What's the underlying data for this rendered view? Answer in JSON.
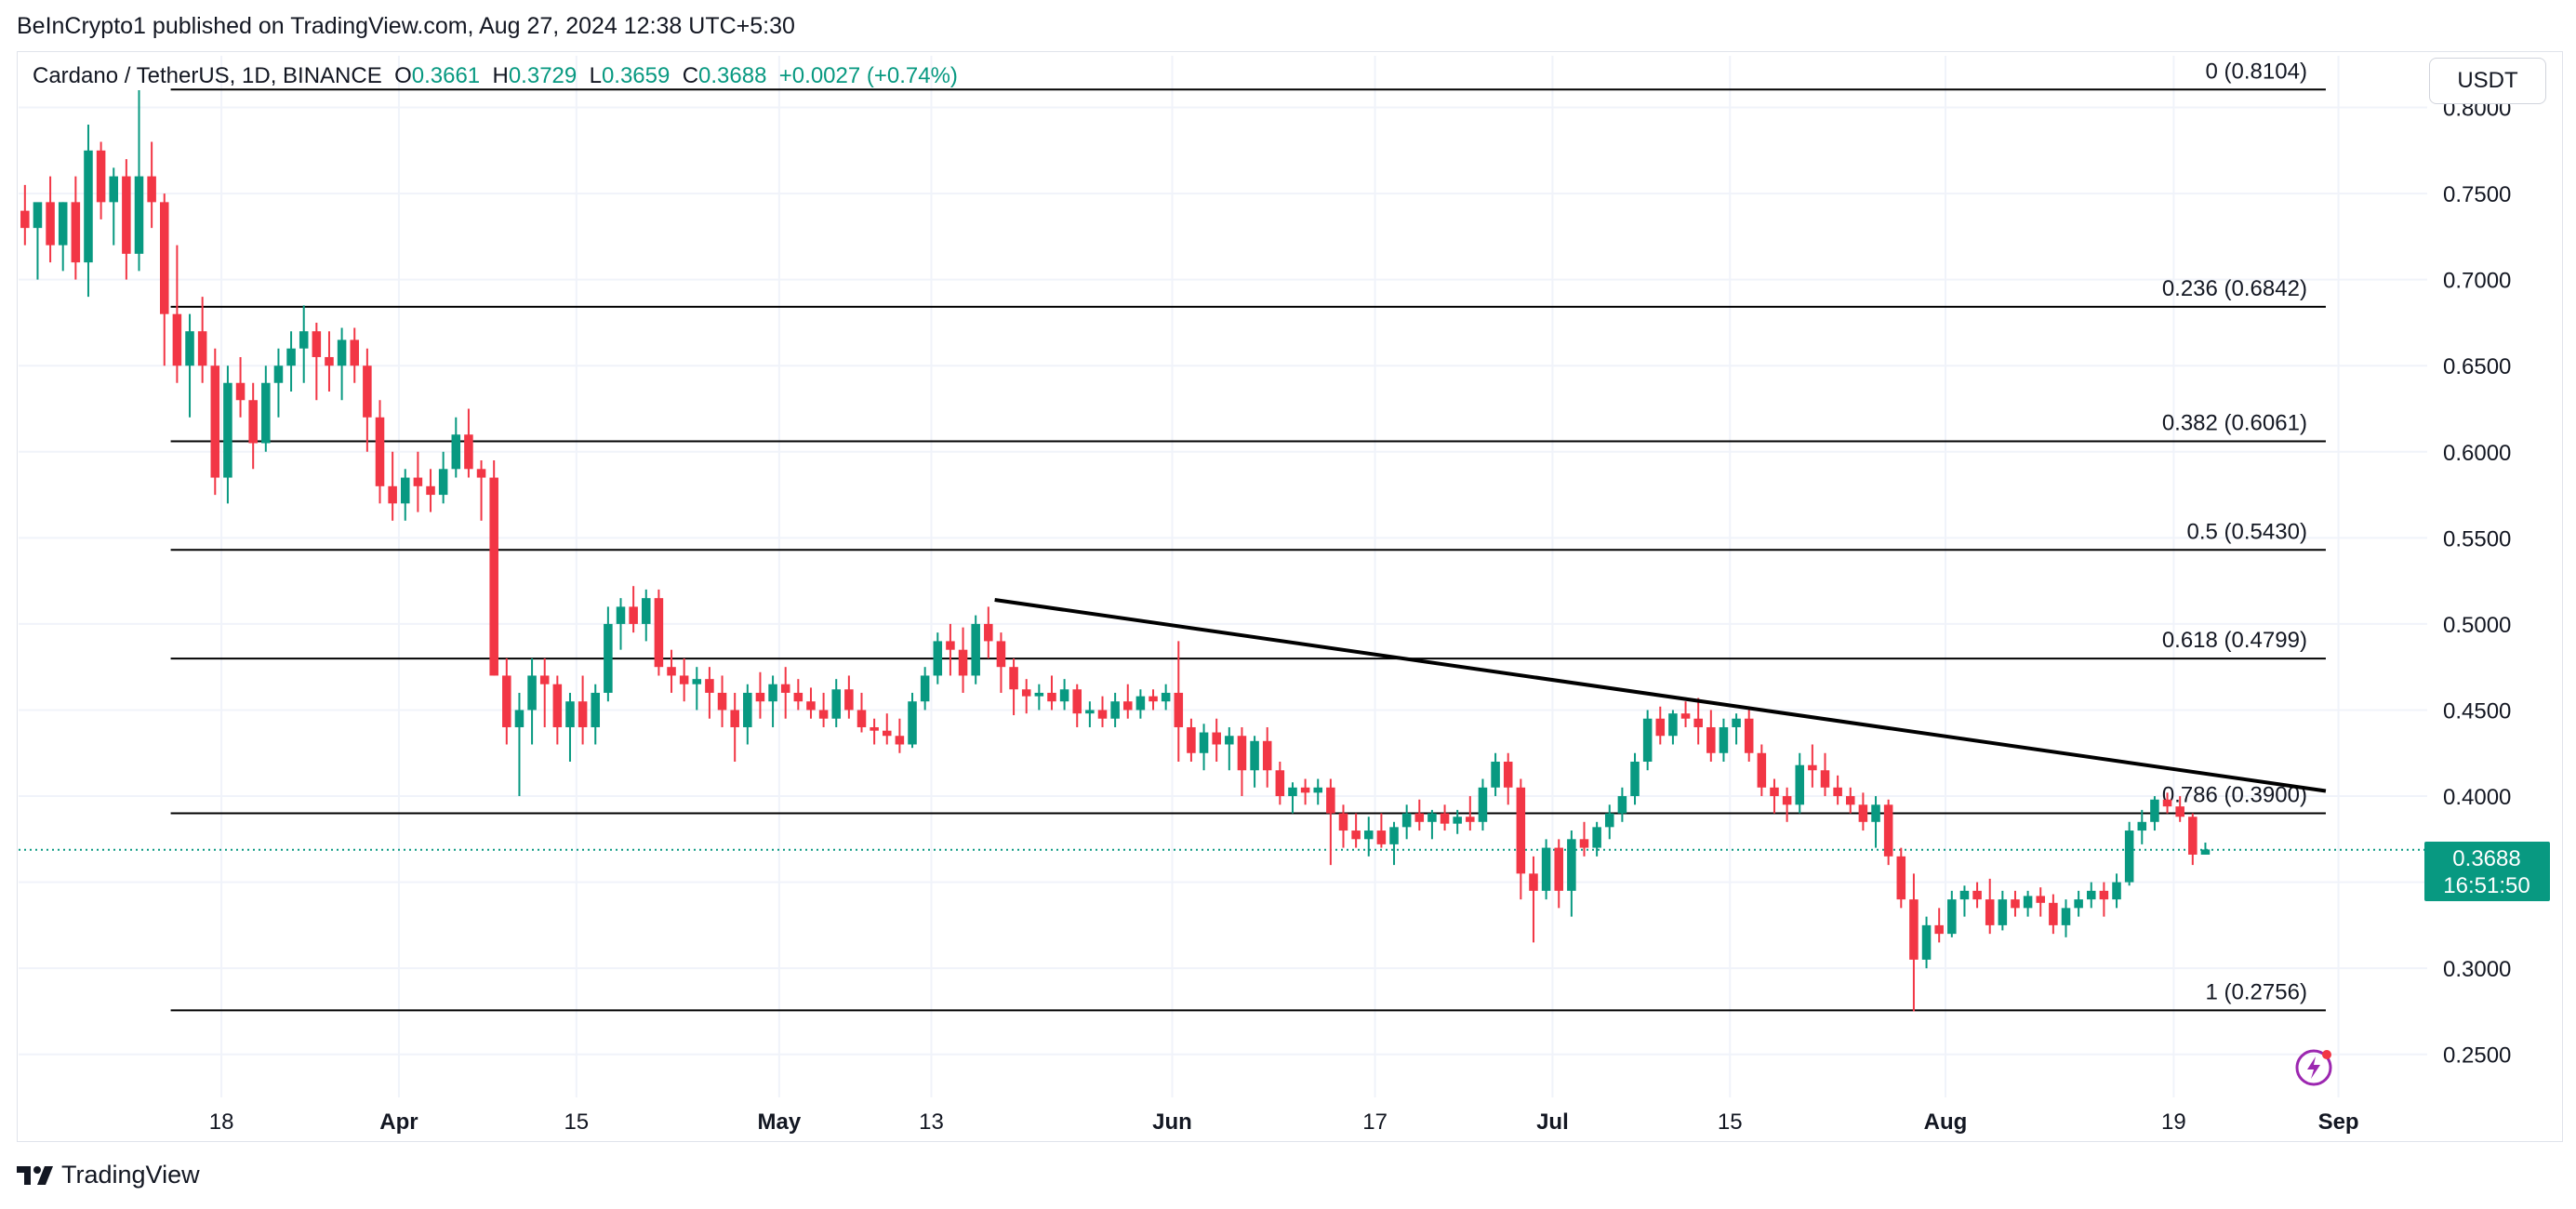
{
  "header": {
    "published_text": "BeInCrypto1 published on TradingView.com, Aug 27, 2024 12:38 UTC+5:30"
  },
  "legend": {
    "symbol": "Cardano / TetherUS, 1D, BINANCE",
    "open_label": "O",
    "open_value": "0.3661",
    "high_label": "H",
    "high_value": "0.3729",
    "low_label": "L",
    "low_value": "0.3659",
    "close_label": "C",
    "close_value": "0.3688",
    "change": "+0.0027 (+0.74%)"
  },
  "currency_button": "USDT",
  "price_tag": {
    "price": "0.3688",
    "countdown": "16:51:50"
  },
  "footer": {
    "brand": "TradingView"
  },
  "icons": {
    "flash": "flash-icon",
    "logo": "tradingview-logo-icon"
  },
  "colors": {
    "up": "#089981",
    "down": "#F23645",
    "trendline": "#000000",
    "fib": "#000000"
  },
  "chart_data": {
    "type": "candlestick",
    "symbol": "ADA/USDT",
    "timeframe": "1D",
    "ylim": [
      0.225,
      0.83
    ],
    "y_ticks": [
      "0.8000",
      "0.7500",
      "0.7000",
      "0.6500",
      "0.6000",
      "0.5500",
      "0.5000",
      "0.4500",
      "0.4000",
      "0.3500",
      "0.3000",
      "0.2500"
    ],
    "y_tick_values": [
      0.8,
      0.75,
      0.7,
      0.65,
      0.6,
      0.55,
      0.5,
      0.45,
      0.4,
      0.35,
      0.3,
      0.25
    ],
    "x_start_date": "2024-03-02",
    "x_end_date": "2024-09-08",
    "x_ticks": [
      {
        "date": "2024-03-18",
        "label": "18",
        "bold": false
      },
      {
        "date": "2024-04-01",
        "label": "Apr",
        "bold": true
      },
      {
        "date": "2024-04-15",
        "label": "15",
        "bold": false
      },
      {
        "date": "2024-05-01",
        "label": "May",
        "bold": true
      },
      {
        "date": "2024-05-13",
        "label": "13",
        "bold": false
      },
      {
        "date": "2024-06-01",
        "label": "Jun",
        "bold": true
      },
      {
        "date": "2024-06-17",
        "label": "17",
        "bold": false
      },
      {
        "date": "2024-07-01",
        "label": "Jul",
        "bold": true
      },
      {
        "date": "2024-07-15",
        "label": "15",
        "bold": false
      },
      {
        "date": "2024-08-01",
        "label": "Aug",
        "bold": true
      },
      {
        "date": "2024-08-19",
        "label": "19",
        "bold": false
      },
      {
        "date": "2024-09-01",
        "label": "Sep",
        "bold": true
      }
    ],
    "fib_levels": [
      {
        "ratio": "0",
        "value": 0.8104,
        "label": "0 (0.8104)"
      },
      {
        "ratio": "0.236",
        "value": 0.6842,
        "label": "0.236 (0.6842)"
      },
      {
        "ratio": "0.382",
        "value": 0.6061,
        "label": "0.382 (0.6061)"
      },
      {
        "ratio": "0.5",
        "value": 0.543,
        "label": "0.5 (0.5430)"
      },
      {
        "ratio": "0.618",
        "value": 0.4799,
        "label": "0.618 (0.4799)"
      },
      {
        "ratio": "0.786",
        "value": 0.39,
        "label": "0.786 (0.3900)"
      },
      {
        "ratio": "1",
        "value": 0.2756,
        "label": "1 (0.2756)"
      }
    ],
    "fib_start_date": "2024-03-14",
    "fib_end_date": "2024-08-31",
    "trendline": {
      "start": {
        "date": "2024-05-18",
        "value": 0.514
      },
      "end": {
        "date": "2024-08-31",
        "value": 0.403
      }
    },
    "current_price": 0.3688,
    "candles": [
      [
        0.74,
        0.755,
        0.72,
        0.73
      ],
      [
        0.73,
        0.74,
        0.7,
        0.745
      ],
      [
        0.745,
        0.76,
        0.71,
        0.72
      ],
      [
        0.72,
        0.745,
        0.705,
        0.745
      ],
      [
        0.745,
        0.76,
        0.7,
        0.71
      ],
      [
        0.71,
        0.79,
        0.69,
        0.775
      ],
      [
        0.775,
        0.78,
        0.735,
        0.745
      ],
      [
        0.745,
        0.765,
        0.72,
        0.76
      ],
      [
        0.76,
        0.77,
        0.7,
        0.715
      ],
      [
        0.715,
        0.81,
        0.705,
        0.76
      ],
      [
        0.76,
        0.78,
        0.73,
        0.745
      ],
      [
        0.745,
        0.75,
        0.65,
        0.68
      ],
      [
        0.68,
        0.72,
        0.64,
        0.65
      ],
      [
        0.65,
        0.68,
        0.62,
        0.67
      ],
      [
        0.67,
        0.69,
        0.64,
        0.65
      ],
      [
        0.65,
        0.66,
        0.575,
        0.585
      ],
      [
        0.585,
        0.65,
        0.57,
        0.64
      ],
      [
        0.64,
        0.655,
        0.62,
        0.63
      ],
      [
        0.63,
        0.64,
        0.59,
        0.605
      ],
      [
        0.605,
        0.65,
        0.6,
        0.64
      ],
      [
        0.64,
        0.66,
        0.62,
        0.65
      ],
      [
        0.65,
        0.67,
        0.635,
        0.66
      ],
      [
        0.66,
        0.685,
        0.64,
        0.67
      ],
      [
        0.67,
        0.675,
        0.63,
        0.655
      ],
      [
        0.655,
        0.67,
        0.635,
        0.65
      ],
      [
        0.65,
        0.672,
        0.63,
        0.665
      ],
      [
        0.665,
        0.672,
        0.64,
        0.65
      ],
      [
        0.65,
        0.66,
        0.6,
        0.62
      ],
      [
        0.62,
        0.63,
        0.57,
        0.58
      ],
      [
        0.58,
        0.6,
        0.56,
        0.57
      ],
      [
        0.57,
        0.59,
        0.56,
        0.585
      ],
      [
        0.585,
        0.6,
        0.565,
        0.58
      ],
      [
        0.58,
        0.59,
        0.565,
        0.575
      ],
      [
        0.575,
        0.6,
        0.57,
        0.59
      ],
      [
        0.59,
        0.62,
        0.585,
        0.61
      ],
      [
        0.61,
        0.625,
        0.585,
        0.59
      ],
      [
        0.59,
        0.595,
        0.56,
        0.585
      ],
      [
        0.585,
        0.595,
        0.47,
        0.47
      ],
      [
        0.47,
        0.48,
        0.43,
        0.44
      ],
      [
        0.44,
        0.46,
        0.4,
        0.45
      ],
      [
        0.45,
        0.48,
        0.43,
        0.47
      ],
      [
        0.47,
        0.48,
        0.44,
        0.465
      ],
      [
        0.465,
        0.47,
        0.43,
        0.44
      ],
      [
        0.44,
        0.46,
        0.42,
        0.455
      ],
      [
        0.455,
        0.47,
        0.43,
        0.44
      ],
      [
        0.44,
        0.465,
        0.43,
        0.46
      ],
      [
        0.46,
        0.51,
        0.455,
        0.5
      ],
      [
        0.5,
        0.515,
        0.485,
        0.51
      ],
      [
        0.51,
        0.522,
        0.495,
        0.5
      ],
      [
        0.5,
        0.52,
        0.49,
        0.515
      ],
      [
        0.515,
        0.52,
        0.47,
        0.475
      ],
      [
        0.475,
        0.485,
        0.46,
        0.47
      ],
      [
        0.47,
        0.48,
        0.455,
        0.465
      ],
      [
        0.465,
        0.475,
        0.45,
        0.468
      ],
      [
        0.468,
        0.475,
        0.445,
        0.46
      ],
      [
        0.46,
        0.47,
        0.44,
        0.45
      ],
      [
        0.45,
        0.46,
        0.42,
        0.44
      ],
      [
        0.44,
        0.465,
        0.43,
        0.46
      ],
      [
        0.46,
        0.472,
        0.445,
        0.455
      ],
      [
        0.455,
        0.47,
        0.44,
        0.465
      ],
      [
        0.465,
        0.475,
        0.445,
        0.46
      ],
      [
        0.46,
        0.468,
        0.45,
        0.455
      ],
      [
        0.455,
        0.463,
        0.445,
        0.45
      ],
      [
        0.45,
        0.46,
        0.44,
        0.445
      ],
      [
        0.445,
        0.468,
        0.44,
        0.462
      ],
      [
        0.462,
        0.47,
        0.445,
        0.45
      ],
      [
        0.45,
        0.46,
        0.437,
        0.44
      ],
      [
        0.44,
        0.445,
        0.43,
        0.438
      ],
      [
        0.438,
        0.448,
        0.43,
        0.435
      ],
      [
        0.435,
        0.445,
        0.425,
        0.43
      ],
      [
        0.43,
        0.46,
        0.428,
        0.455
      ],
      [
        0.455,
        0.475,
        0.45,
        0.47
      ],
      [
        0.47,
        0.495,
        0.465,
        0.49
      ],
      [
        0.49,
        0.5,
        0.47,
        0.485
      ],
      [
        0.485,
        0.498,
        0.46,
        0.47
      ],
      [
        0.47,
        0.505,
        0.465,
        0.5
      ],
      [
        0.5,
        0.51,
        0.48,
        0.49
      ],
      [
        0.49,
        0.495,
        0.46,
        0.475
      ],
      [
        0.475,
        0.48,
        0.447,
        0.462
      ],
      [
        0.462,
        0.468,
        0.448,
        0.458
      ],
      [
        0.458,
        0.465,
        0.45,
        0.46
      ],
      [
        0.46,
        0.47,
        0.45,
        0.455
      ],
      [
        0.455,
        0.468,
        0.45,
        0.462
      ],
      [
        0.462,
        0.465,
        0.44,
        0.448
      ],
      [
        0.448,
        0.455,
        0.44,
        0.45
      ],
      [
        0.45,
        0.458,
        0.44,
        0.445
      ],
      [
        0.445,
        0.46,
        0.44,
        0.455
      ],
      [
        0.455,
        0.465,
        0.445,
        0.45
      ],
      [
        0.45,
        0.462,
        0.445,
        0.458
      ],
      [
        0.458,
        0.462,
        0.45,
        0.455
      ],
      [
        0.455,
        0.465,
        0.45,
        0.46
      ],
      [
        0.46,
        0.49,
        0.42,
        0.44
      ],
      [
        0.44,
        0.445,
        0.42,
        0.425
      ],
      [
        0.425,
        0.442,
        0.415,
        0.437
      ],
      [
        0.437,
        0.445,
        0.42,
        0.43
      ],
      [
        0.43,
        0.44,
        0.415,
        0.435
      ],
      [
        0.435,
        0.44,
        0.4,
        0.415
      ],
      [
        0.415,
        0.435,
        0.405,
        0.432
      ],
      [
        0.432,
        0.44,
        0.405,
        0.415
      ],
      [
        0.415,
        0.42,
        0.395,
        0.4
      ],
      [
        0.4,
        0.408,
        0.39,
        0.405
      ],
      [
        0.405,
        0.41,
        0.395,
        0.402
      ],
      [
        0.402,
        0.41,
        0.395,
        0.405
      ],
      [
        0.405,
        0.41,
        0.36,
        0.39
      ],
      [
        0.39,
        0.395,
        0.37,
        0.38
      ],
      [
        0.38,
        0.39,
        0.37,
        0.375
      ],
      [
        0.375,
        0.388,
        0.365,
        0.38
      ],
      [
        0.38,
        0.39,
        0.37,
        0.372
      ],
      [
        0.372,
        0.385,
        0.36,
        0.382
      ],
      [
        0.382,
        0.395,
        0.375,
        0.39
      ],
      [
        0.39,
        0.398,
        0.38,
        0.385
      ],
      [
        0.385,
        0.392,
        0.375,
        0.39
      ],
      [
        0.39,
        0.395,
        0.38,
        0.384
      ],
      [
        0.384,
        0.392,
        0.378,
        0.388
      ],
      [
        0.388,
        0.4,
        0.38,
        0.385
      ],
      [
        0.385,
        0.41,
        0.38,
        0.405
      ],
      [
        0.405,
        0.425,
        0.4,
        0.42
      ],
      [
        0.42,
        0.425,
        0.395,
        0.405
      ],
      [
        0.405,
        0.41,
        0.34,
        0.355
      ],
      [
        0.355,
        0.365,
        0.315,
        0.345
      ],
      [
        0.345,
        0.375,
        0.34,
        0.37
      ],
      [
        0.37,
        0.375,
        0.335,
        0.345
      ],
      [
        0.345,
        0.38,
        0.33,
        0.375
      ],
      [
        0.375,
        0.385,
        0.365,
        0.37
      ],
      [
        0.37,
        0.385,
        0.365,
        0.382
      ],
      [
        0.382,
        0.395,
        0.375,
        0.39
      ],
      [
        0.39,
        0.405,
        0.385,
        0.4
      ],
      [
        0.4,
        0.425,
        0.395,
        0.42
      ],
      [
        0.42,
        0.45,
        0.415,
        0.445
      ],
      [
        0.445,
        0.452,
        0.43,
        0.435
      ],
      [
        0.435,
        0.45,
        0.43,
        0.448
      ],
      [
        0.448,
        0.455,
        0.44,
        0.445
      ],
      [
        0.445,
        0.457,
        0.43,
        0.44
      ],
      [
        0.44,
        0.45,
        0.42,
        0.425
      ],
      [
        0.425,
        0.445,
        0.42,
        0.44
      ],
      [
        0.44,
        0.448,
        0.43,
        0.445
      ],
      [
        0.445,
        0.45,
        0.42,
        0.425
      ],
      [
        0.425,
        0.43,
        0.4,
        0.405
      ],
      [
        0.405,
        0.41,
        0.39,
        0.4
      ],
      [
        0.4,
        0.405,
        0.385,
        0.395
      ],
      [
        0.395,
        0.425,
        0.39,
        0.418
      ],
      [
        0.418,
        0.43,
        0.405,
        0.415
      ],
      [
        0.415,
        0.425,
        0.4,
        0.405
      ],
      [
        0.405,
        0.412,
        0.395,
        0.4
      ],
      [
        0.4,
        0.405,
        0.39,
        0.395
      ],
      [
        0.395,
        0.402,
        0.38,
        0.385
      ],
      [
        0.385,
        0.4,
        0.37,
        0.395
      ],
      [
        0.395,
        0.398,
        0.36,
        0.365
      ],
      [
        0.365,
        0.37,
        0.335,
        0.34
      ],
      [
        0.34,
        0.355,
        0.275,
        0.305
      ],
      [
        0.305,
        0.33,
        0.3,
        0.325
      ],
      [
        0.325,
        0.335,
        0.315,
        0.32
      ],
      [
        0.32,
        0.345,
        0.318,
        0.34
      ],
      [
        0.34,
        0.348,
        0.33,
        0.345
      ],
      [
        0.345,
        0.35,
        0.335,
        0.34
      ],
      [
        0.34,
        0.352,
        0.32,
        0.325
      ],
      [
        0.325,
        0.345,
        0.322,
        0.34
      ],
      [
        0.34,
        0.345,
        0.33,
        0.335
      ],
      [
        0.335,
        0.345,
        0.33,
        0.342
      ],
      [
        0.342,
        0.347,
        0.33,
        0.338
      ],
      [
        0.338,
        0.343,
        0.32,
        0.325
      ],
      [
        0.325,
        0.34,
        0.318,
        0.335
      ],
      [
        0.335,
        0.345,
        0.33,
        0.34
      ],
      [
        0.34,
        0.35,
        0.335,
        0.345
      ],
      [
        0.345,
        0.35,
        0.33,
        0.34
      ],
      [
        0.34,
        0.355,
        0.335,
        0.35
      ],
      [
        0.35,
        0.385,
        0.348,
        0.38
      ],
      [
        0.38,
        0.392,
        0.372,
        0.385
      ],
      [
        0.385,
        0.4,
        0.38,
        0.398
      ],
      [
        0.398,
        0.402,
        0.39,
        0.394
      ],
      [
        0.394,
        0.4,
        0.385,
        0.388
      ],
      [
        0.388,
        0.39,
        0.36,
        0.366
      ],
      [
        0.366,
        0.373,
        0.366,
        0.369
      ]
    ]
  }
}
